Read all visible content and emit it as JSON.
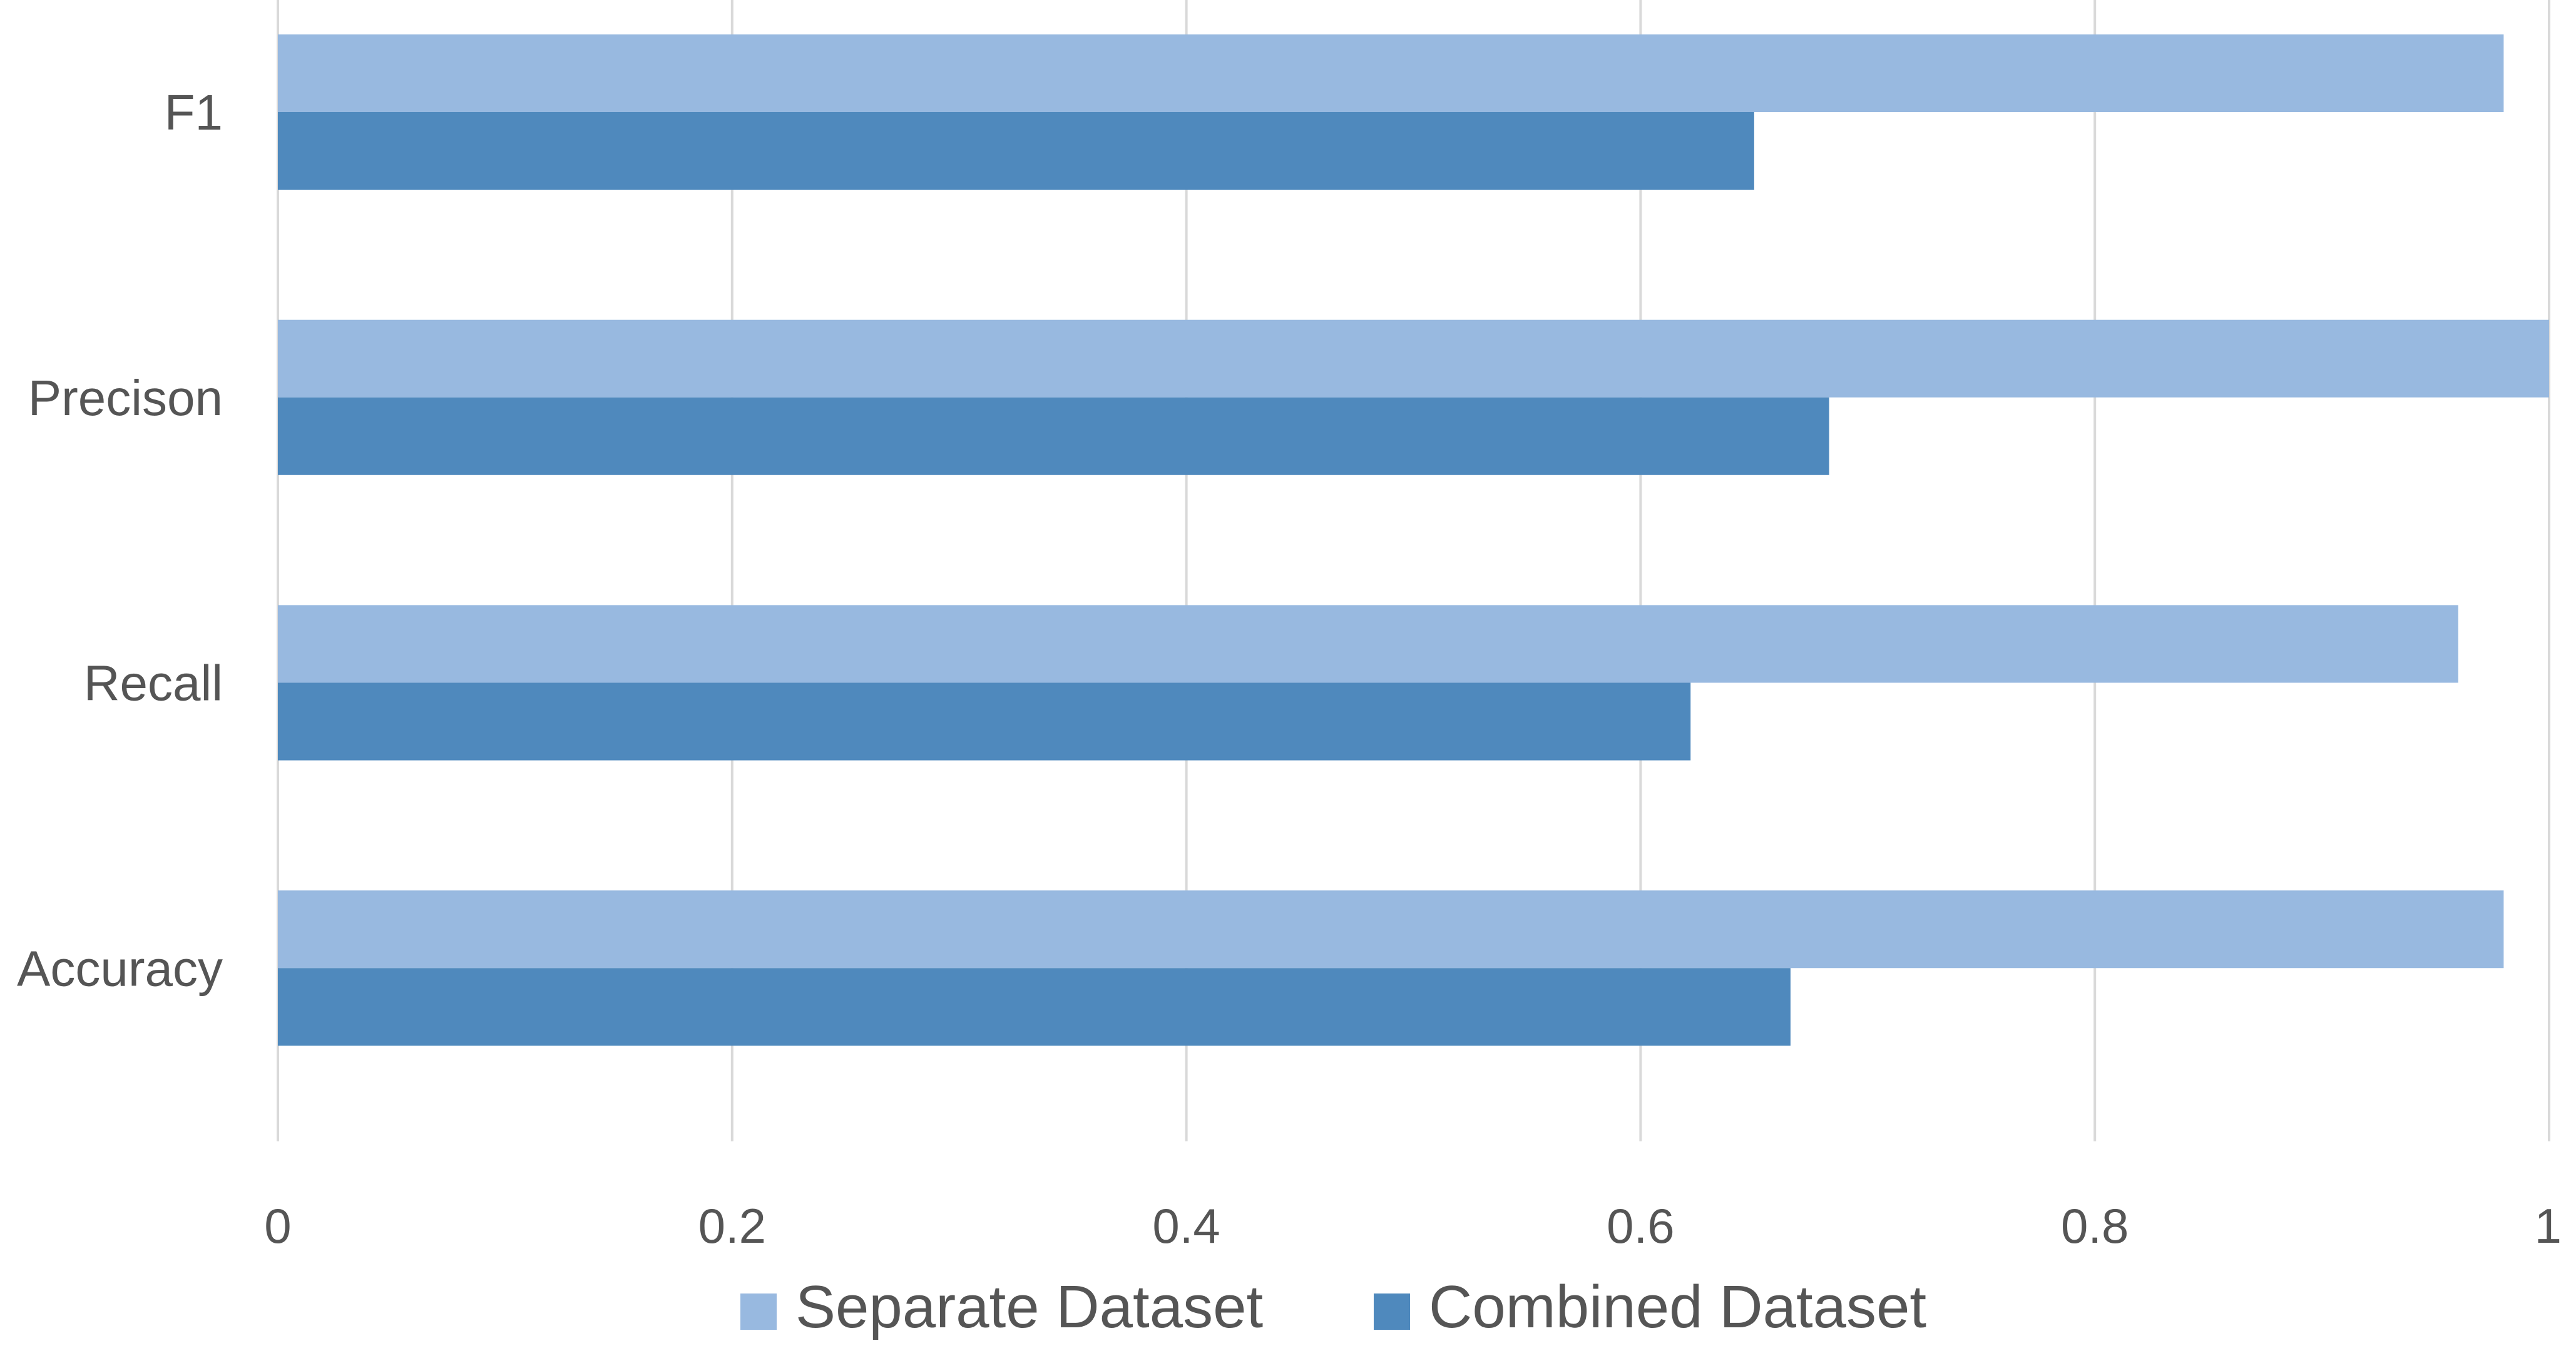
{
  "chart_data": {
    "type": "bar",
    "orientation": "horizontal",
    "title": "",
    "xlabel": "",
    "ylabel": "",
    "categories": [
      "F1",
      "Precison",
      "Recall",
      "Accuracy"
    ],
    "series": [
      {
        "name": "Separate Dataset",
        "color": "#98b9e0",
        "values": [
          0.98,
          1.0,
          0.96,
          0.98
        ]
      },
      {
        "name": "Combined Dataset",
        "color": "#4f89bd",
        "values": [
          0.65,
          0.683,
          0.622,
          0.666
        ]
      }
    ],
    "xlim": [
      0,
      1
    ],
    "xticks": [
      "0",
      "0.2",
      "0.4",
      "0.6",
      "0.8",
      "1"
    ],
    "xtick_values": [
      0,
      0.2,
      0.4,
      0.6,
      0.8,
      1
    ],
    "grid": true,
    "legend_position": "bottom"
  }
}
